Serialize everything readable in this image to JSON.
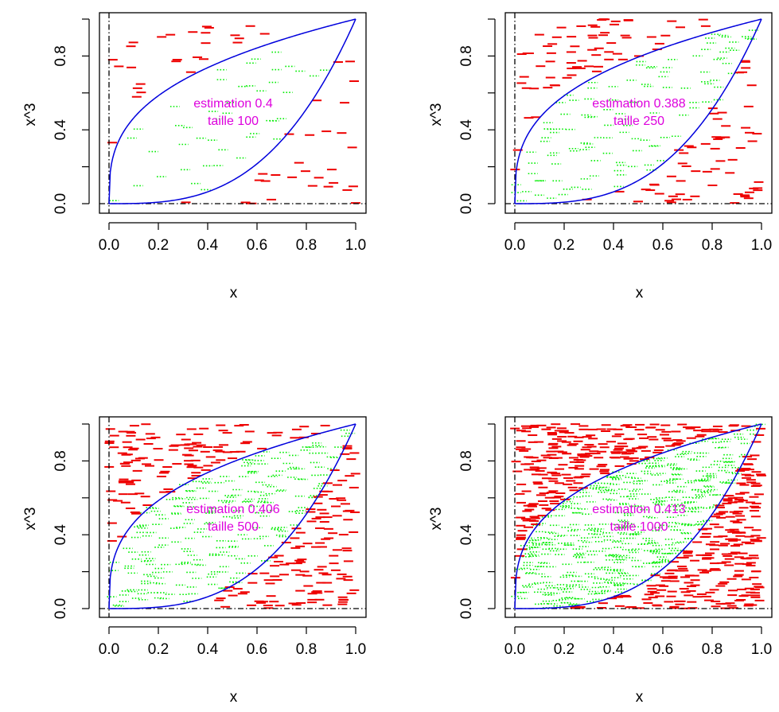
{
  "chart_data": [
    {
      "type": "scatter",
      "title": "",
      "xlabel": "x",
      "ylabel": "x^3",
      "xlim": [
        0,
        1
      ],
      "ylim": [
        0,
        1
      ],
      "xticks": [
        "0.0",
        "0.2",
        "0.4",
        "0.6",
        "0.8",
        "1.0"
      ],
      "yticks": [
        "0.0",
        "0.4",
        "0.8"
      ],
      "annotation_lines": [
        "estimation 0.4",
        "taille 100"
      ],
      "n_points": 100,
      "estimate": 0.4,
      "curves": [
        "y = x^(1/3)",
        "y = x^3"
      ],
      "reference_lines": [
        "x = 0",
        "y = 0"
      ],
      "series": [
        {
          "marker": "green dotted dash",
          "color": "#00ee00",
          "meaning": "inside region"
        },
        {
          "marker": "red dash",
          "color": "#ee0000",
          "meaning": "outside region"
        }
      ],
      "curve_color": "#0000dd",
      "annotation_color": "#dd00dd",
      "grid": false
    },
    {
      "type": "scatter",
      "title": "",
      "xlabel": "x",
      "ylabel": "x^3",
      "xlim": [
        0,
        1
      ],
      "ylim": [
        0,
        1
      ],
      "xticks": [
        "0.0",
        "0.2",
        "0.4",
        "0.6",
        "0.8",
        "1.0"
      ],
      "yticks": [
        "0.0",
        "0.4",
        "0.8"
      ],
      "annotation_lines": [
        "estimation 0.388",
        "taille 250"
      ],
      "n_points": 250,
      "estimate": 0.388,
      "curves": [
        "y = x^(1/3)",
        "y = x^3"
      ],
      "reference_lines": [
        "x = 0",
        "y = 0"
      ],
      "curve_color": "#0000dd",
      "annotation_color": "#dd00dd",
      "grid": false
    },
    {
      "type": "scatter",
      "title": "",
      "xlabel": "x",
      "ylabel": "x^3",
      "xlim": [
        0,
        1
      ],
      "ylim": [
        0,
        1
      ],
      "xticks": [
        "0.0",
        "0.2",
        "0.4",
        "0.6",
        "0.8",
        "1.0"
      ],
      "yticks": [
        "0.0",
        "0.4",
        "0.8"
      ],
      "annotation_lines": [
        "estimation 0.406",
        "taille 500"
      ],
      "n_points": 500,
      "estimate": 0.406,
      "curves": [
        "y = x^(1/3)",
        "y = x^3"
      ],
      "reference_lines": [
        "x = 0",
        "y = 0"
      ],
      "curve_color": "#0000dd",
      "annotation_color": "#dd00dd",
      "grid": false
    },
    {
      "type": "scatter",
      "title": "",
      "xlabel": "x",
      "ylabel": "x^3",
      "xlim": [
        0,
        1
      ],
      "ylim": [
        0,
        1
      ],
      "xticks": [
        "0.0",
        "0.2",
        "0.4",
        "0.6",
        "0.8",
        "1.0"
      ],
      "yticks": [
        "0.0",
        "0.4",
        "0.8"
      ],
      "annotation_lines": [
        "estimation 0.413",
        "taille 1000"
      ],
      "n_points": 1000,
      "estimate": 0.413,
      "curves": [
        "y = x^(1/3)",
        "y = x^3"
      ],
      "reference_lines": [
        "x = 0",
        "y = 0"
      ],
      "curve_color": "#0000dd",
      "annotation_color": "#dd00dd",
      "grid": false
    }
  ]
}
